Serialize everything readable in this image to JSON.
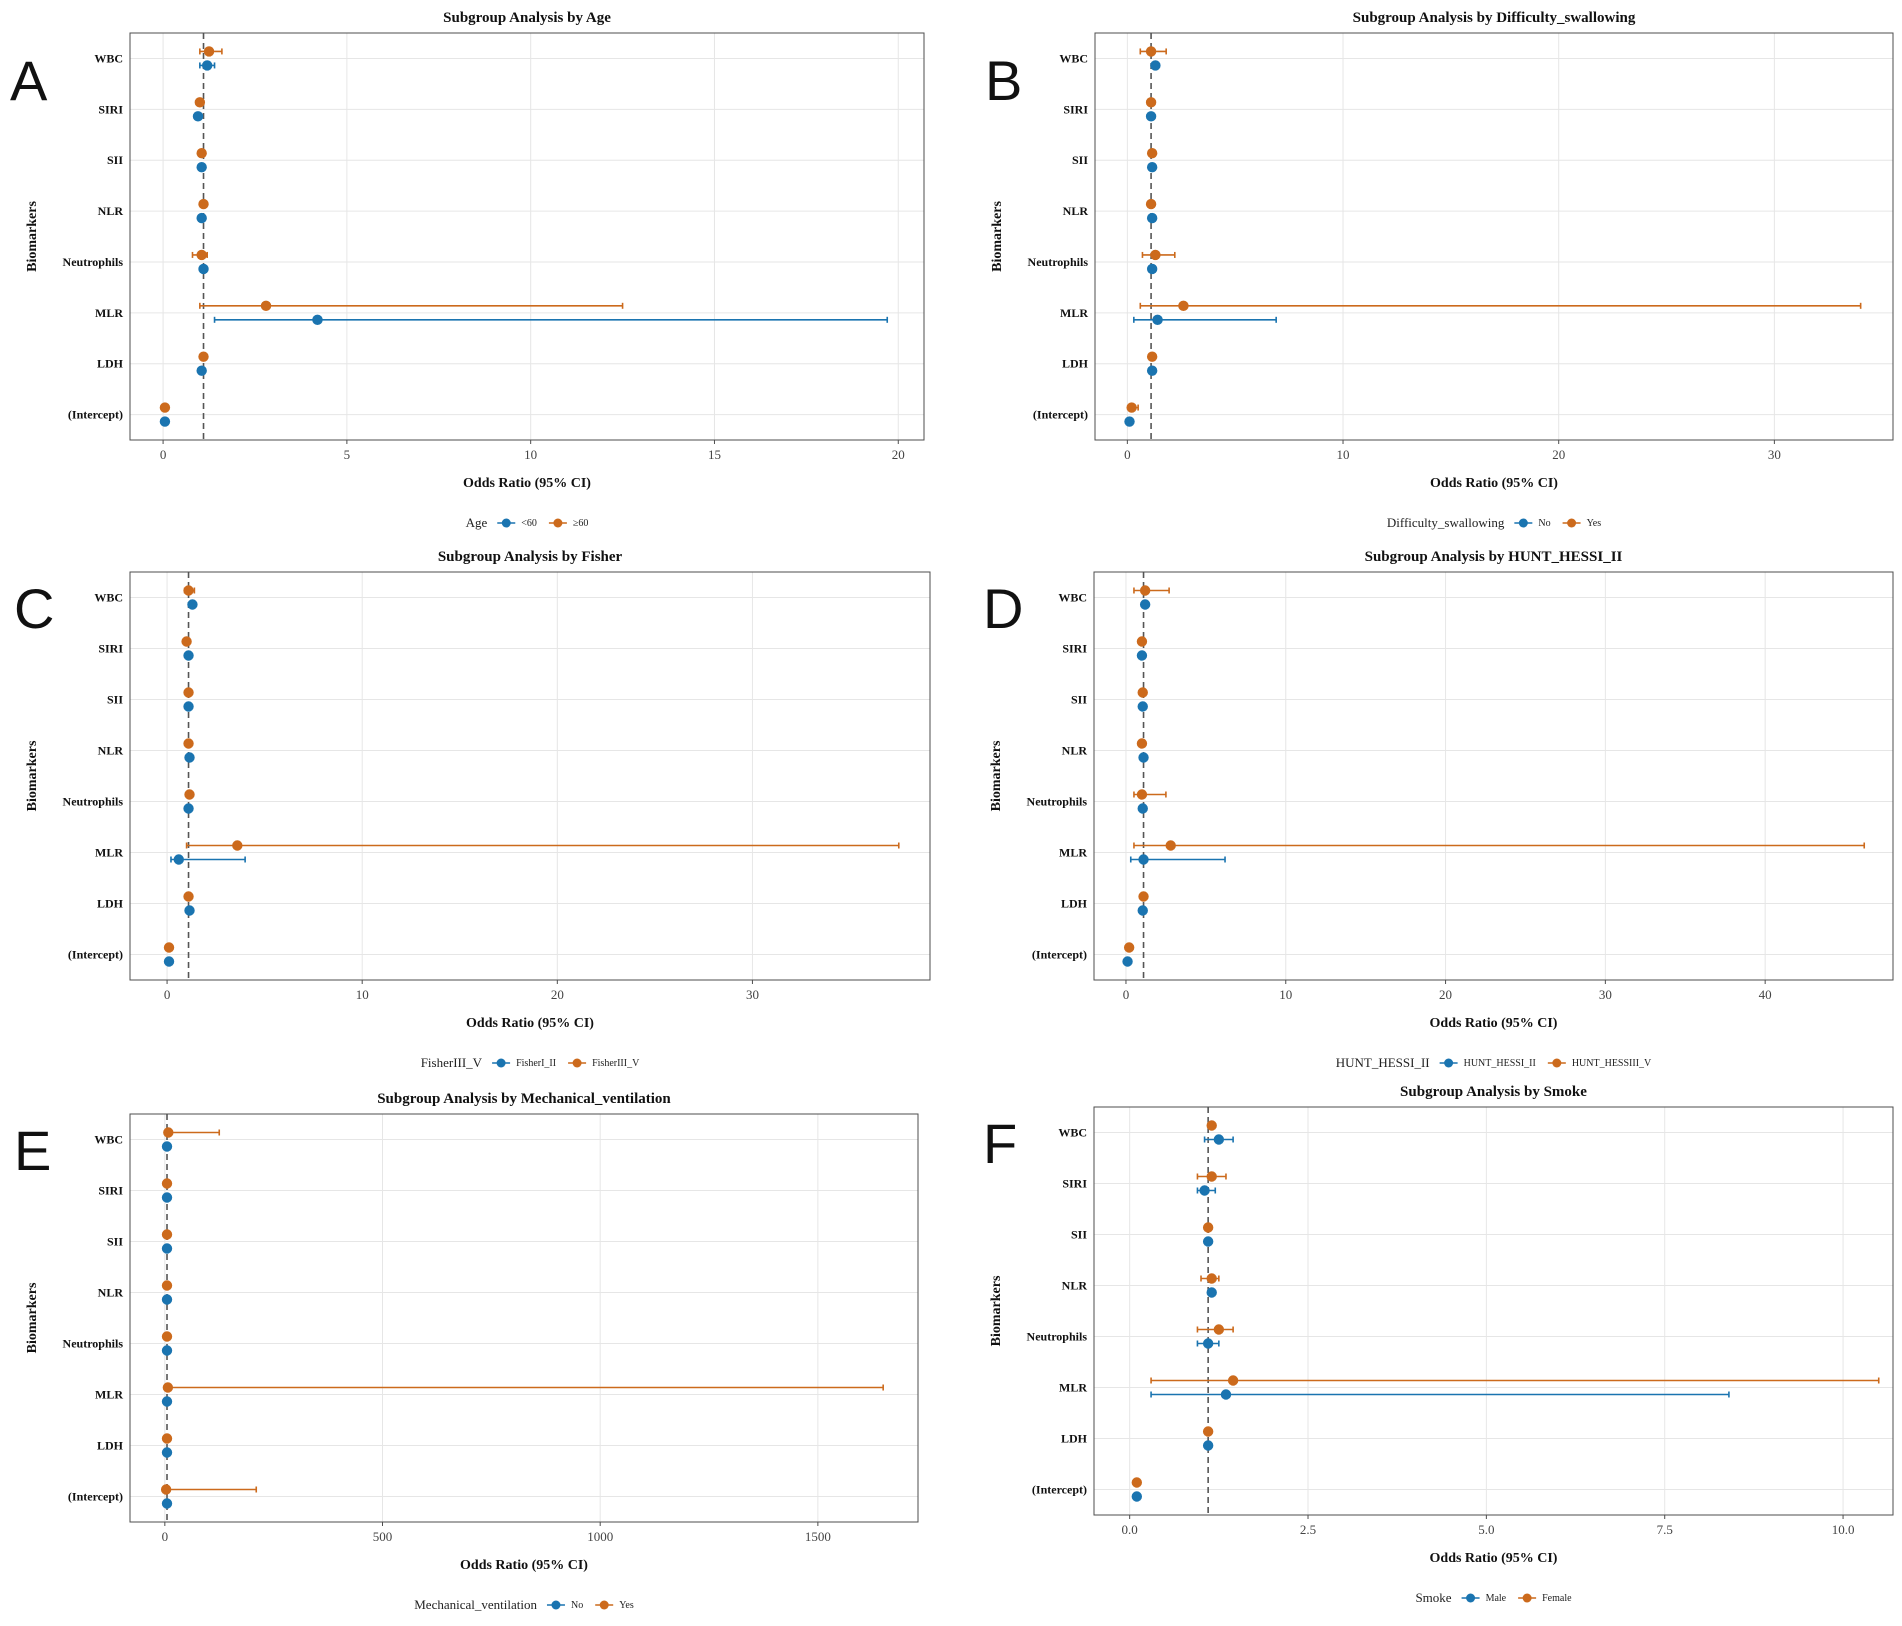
{
  "colors": {
    "series1": "#1a74b0",
    "series2": "#cc6a1c",
    "grid": "#e6e6e6",
    "border": "#4d4d4d",
    "refline": "#555555"
  },
  "chart_data": [
    {
      "panel": "A",
      "type": "forest",
      "title": "Subgroup Analysis by Age",
      "xlabel": "Odds Ratio (95% CI)",
      "ylabel": "Biomarkers",
      "xlim": [
        -0.9,
        20.7
      ],
      "xticks": [
        0,
        5,
        10,
        15,
        20
      ],
      "xtick_labels": [
        "0",
        "5",
        "10",
        "15",
        "20"
      ],
      "ref": 1.1,
      "categories": [
        "WBC",
        "SIRI",
        "SII",
        "NLR",
        "Neutrophils",
        "MLR",
        "LDH",
        "(Intercept)"
      ],
      "legend_title": "Age",
      "series": [
        {
          "name": "<60",
          "color": "series1",
          "points": [
            {
              "est": 1.2,
              "lo": 1.0,
              "hi": 1.4
            },
            {
              "est": 0.95
            },
            {
              "est": 1.05
            },
            {
              "est": 1.05
            },
            {
              "est": 1.1
            },
            {
              "est": 4.2,
              "lo": 1.4,
              "hi": 19.7
            },
            {
              "est": 1.05
            },
            {
              "est": 0.05
            }
          ]
        },
        {
          "name": "≥60",
          "color": "series2",
          "points": [
            {
              "est": 1.25,
              "lo": 1.0,
              "hi": 1.6
            },
            {
              "est": 1.0
            },
            {
              "est": 1.05
            },
            {
              "est": 1.1
            },
            {
              "est": 1.05,
              "lo": 0.8,
              "hi": 1.2
            },
            {
              "est": 2.8,
              "lo": 1.0,
              "hi": 12.5
            },
            {
              "est": 1.1
            },
            {
              "est": 0.05
            }
          ]
        }
      ]
    },
    {
      "panel": "B",
      "type": "forest",
      "title": "Subgroup Analysis by Difficulty_swallowing",
      "xlabel": "Odds Ratio (95% CI)",
      "ylabel": "Biomarkers",
      "xlim": [
        -1.5,
        35.5
      ],
      "xticks": [
        0,
        10,
        20,
        30
      ],
      "xtick_labels": [
        "0",
        "10",
        "20",
        "30"
      ],
      "ref": 1.1,
      "categories": [
        "WBC",
        "SIRI",
        "SII",
        "NLR",
        "Neutrophils",
        "MLR",
        "LDH",
        "(Intercept)"
      ],
      "legend_title": "Difficulty_swallowing",
      "series": [
        {
          "name": "No",
          "color": "series1",
          "points": [
            {
              "est": 1.3
            },
            {
              "est": 1.1
            },
            {
              "est": 1.15
            },
            {
              "est": 1.15
            },
            {
              "est": 1.15
            },
            {
              "est": 1.4,
              "lo": 0.3,
              "hi": 6.9
            },
            {
              "est": 1.15
            },
            {
              "est": 0.1
            }
          ]
        },
        {
          "name": "Yes",
          "color": "series2",
          "points": [
            {
              "est": 1.1,
              "lo": 0.6,
              "hi": 1.8
            },
            {
              "est": 1.1
            },
            {
              "est": 1.15
            },
            {
              "est": 1.1
            },
            {
              "est": 1.3,
              "lo": 0.7,
              "hi": 2.2
            },
            {
              "est": 2.6,
              "lo": 0.6,
              "hi": 34.0
            },
            {
              "est": 1.15
            },
            {
              "est": 0.2,
              "lo": 0.05,
              "hi": 0.5
            }
          ]
        }
      ]
    },
    {
      "panel": "C",
      "type": "forest",
      "title": "Subgroup Analysis by Fisher",
      "xlabel": "Odds Ratio (95% CI)",
      "ylabel": "Biomarkers",
      "xlim": [
        -1.9,
        39.1
      ],
      "xticks": [
        0,
        10,
        20,
        30
      ],
      "xtick_labels": [
        "0",
        "10",
        "20",
        "30"
      ],
      "ref": 1.1,
      "categories": [
        "WBC",
        "SIRI",
        "SII",
        "NLR",
        "Neutrophils",
        "MLR",
        "LDH",
        "(Intercept)"
      ],
      "legend_title": "FisherIII_V",
      "series": [
        {
          "name": "FisherI_II",
          "color": "series1",
          "points": [
            {
              "est": 1.3
            },
            {
              "est": 1.1
            },
            {
              "est": 1.1
            },
            {
              "est": 1.15
            },
            {
              "est": 1.1
            },
            {
              "est": 0.6,
              "lo": 0.2,
              "hi": 4.0
            },
            {
              "est": 1.15
            },
            {
              "est": 0.1
            }
          ]
        },
        {
          "name": "FisherIII_V",
          "color": "series2",
          "points": [
            {
              "est": 1.1,
              "lo": 0.9,
              "hi": 1.4
            },
            {
              "est": 1.0
            },
            {
              "est": 1.1
            },
            {
              "est": 1.1
            },
            {
              "est": 1.15
            },
            {
              "est": 3.6,
              "lo": 1.0,
              "hi": 37.5
            },
            {
              "est": 1.1
            },
            {
              "est": 0.1
            }
          ]
        }
      ]
    },
    {
      "panel": "D",
      "type": "forest",
      "title": "Subgroup Analysis by HUNT_HESSI_II",
      "xlabel": "Odds Ratio (95% CI)",
      "ylabel": "Biomarkers",
      "xlim": [
        -2.0,
        48.0
      ],
      "xticks": [
        0,
        10,
        20,
        30,
        40
      ],
      "xtick_labels": [
        "0",
        "10",
        "20",
        "30",
        "40"
      ],
      "ref": 1.1,
      "categories": [
        "WBC",
        "SIRI",
        "SII",
        "NLR",
        "Neutrophils",
        "MLR",
        "LDH",
        "(Intercept)"
      ],
      "legend_title": "HUNT_HESSI_II",
      "series": [
        {
          "name": "HUNT_HESSI_II",
          "color": "series1",
          "points": [
            {
              "est": 1.2
            },
            {
              "est": 1.0
            },
            {
              "est": 1.05
            },
            {
              "est": 1.1
            },
            {
              "est": 1.05
            },
            {
              "est": 1.1,
              "lo": 0.3,
              "hi": 6.2
            },
            {
              "est": 1.05
            },
            {
              "est": 0.1
            }
          ]
        },
        {
          "name": "HUNT_HESSIII_V",
          "color": "series2",
          "points": [
            {
              "est": 1.2,
              "lo": 0.5,
              "hi": 2.7
            },
            {
              "est": 1.0
            },
            {
              "est": 1.05
            },
            {
              "est": 1.0
            },
            {
              "est": 1.0,
              "lo": 0.5,
              "hi": 2.5
            },
            {
              "est": 2.8,
              "lo": 0.5,
              "hi": 46.2
            },
            {
              "est": 1.1
            },
            {
              "est": 0.2
            }
          ]
        }
      ]
    },
    {
      "panel": "E",
      "type": "forest",
      "title": "Subgroup Analysis by Mechanical_ventilation",
      "xlabel": "Odds Ratio (95% CI)",
      "ylabel": "Biomarkers",
      "xlim": [
        -80,
        1730
      ],
      "xticks": [
        0,
        500,
        1000,
        1500
      ],
      "xtick_labels": [
        "0",
        "500",
        "1000",
        "1500"
      ],
      "ref": 5,
      "categories": [
        "WBC",
        "SIRI",
        "SII",
        "NLR",
        "Neutrophils",
        "MLR",
        "LDH",
        "(Intercept)"
      ],
      "legend_title": "Mechanical_ventilation",
      "series": [
        {
          "name": "No",
          "color": "series1",
          "points": [
            {
              "est": 5
            },
            {
              "est": 5
            },
            {
              "est": 5
            },
            {
              "est": 5
            },
            {
              "est": 5
            },
            {
              "est": 5
            },
            {
              "est": 5
            },
            {
              "est": 5
            }
          ]
        },
        {
          "name": "Yes",
          "color": "series2",
          "points": [
            {
              "est": 8,
              "lo": 3,
              "hi": 125
            },
            {
              "est": 5
            },
            {
              "est": 5
            },
            {
              "est": 5
            },
            {
              "est": 5
            },
            {
              "est": 7,
              "lo": 2,
              "hi": 1650
            },
            {
              "est": 5
            },
            {
              "est": 3,
              "lo": 1,
              "hi": 210
            }
          ]
        }
      ]
    },
    {
      "panel": "F",
      "type": "forest",
      "title": "Subgroup Analysis by Smoke",
      "xlabel": "Odds Ratio (95% CI)",
      "ylabel": "Biomarkers",
      "xlim": [
        -0.5,
        10.7
      ],
      "xticks": [
        0,
        2.5,
        5,
        7.5,
        10
      ],
      "xtick_labels": [
        "0.0",
        "2.5",
        "5.0",
        "7.5",
        "10.0"
      ],
      "ref": 1.1,
      "categories": [
        "WBC",
        "SIRI",
        "SII",
        "NLR",
        "Neutrophils",
        "MLR",
        "LDH",
        "(Intercept)"
      ],
      "legend_title": "Smoke",
      "series": [
        {
          "name": "Male",
          "color": "series1",
          "points": [
            {
              "est": 1.25,
              "lo": 1.05,
              "hi": 1.45
            },
            {
              "est": 1.05,
              "lo": 0.95,
              "hi": 1.2
            },
            {
              "est": 1.1
            },
            {
              "est": 1.15
            },
            {
              "est": 1.1,
              "lo": 0.95,
              "hi": 1.25
            },
            {
              "est": 1.35,
              "lo": 0.3,
              "hi": 8.4
            },
            {
              "est": 1.1
            },
            {
              "est": 0.1
            }
          ]
        },
        {
          "name": "Female",
          "color": "series2",
          "points": [
            {
              "est": 1.15
            },
            {
              "est": 1.15,
              "lo": 0.95,
              "hi": 1.35
            },
            {
              "est": 1.1
            },
            {
              "est": 1.15,
              "lo": 1.0,
              "hi": 1.25
            },
            {
              "est": 1.25,
              "lo": 0.95,
              "hi": 1.45
            },
            {
              "est": 1.45,
              "lo": 0.3,
              "hi": 10.5
            },
            {
              "est": 1.1
            },
            {
              "est": 0.1
            }
          ]
        }
      ]
    }
  ]
}
